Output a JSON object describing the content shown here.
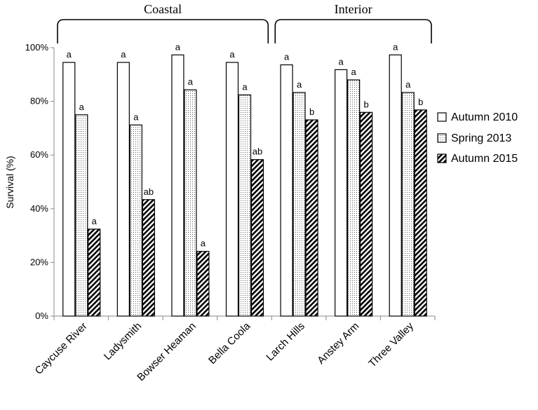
{
  "chart_data": {
    "type": "bar",
    "ylabel": "Survival (%)",
    "ylim": [
      0,
      100
    ],
    "yticks": [
      0,
      20,
      40,
      60,
      80,
      100
    ],
    "ytick_labels": [
      "0%",
      "20%",
      "40%",
      "60%",
      "80%",
      "100%"
    ],
    "categories": [
      "Caycuse River",
      "Ladysmith",
      "Bowser Heaman",
      "Bella Coola",
      "Larch Hills",
      "Anstey Arm",
      "Three Valley"
    ],
    "groups": [
      {
        "label": "Coastal",
        "categories": [
          "Caycuse River",
          "Ladysmith",
          "Bowser Heaman",
          "Bella Coola"
        ]
      },
      {
        "label": "Interior",
        "categories": [
          "Larch Hills",
          "Anstey Arm",
          "Three Valley"
        ]
      }
    ],
    "series": [
      {
        "name": "Autumn 2010",
        "pattern": "blank",
        "values": [
          94.5,
          94.5,
          97.3,
          94.5,
          93.6,
          91.8,
          97.3
        ],
        "labels": [
          "a",
          "a",
          "a",
          "a",
          "a",
          "a",
          "a"
        ]
      },
      {
        "name": "Spring 2013",
        "pattern": "dotted",
        "values": [
          75.0,
          71.2,
          84.3,
          82.4,
          83.3,
          88.0,
          83.3
        ],
        "labels": [
          "a",
          "a",
          "a",
          "a",
          "a",
          "a",
          "a"
        ]
      },
      {
        "name": "Autumn 2015",
        "pattern": "hatched",
        "values": [
          32.4,
          43.4,
          24.1,
          58.3,
          73.1,
          75.9,
          76.8
        ],
        "labels": [
          "a",
          "ab",
          "a",
          "ab",
          "b",
          "b",
          "b"
        ]
      }
    ],
    "legend_position": "right",
    "grid": false
  }
}
